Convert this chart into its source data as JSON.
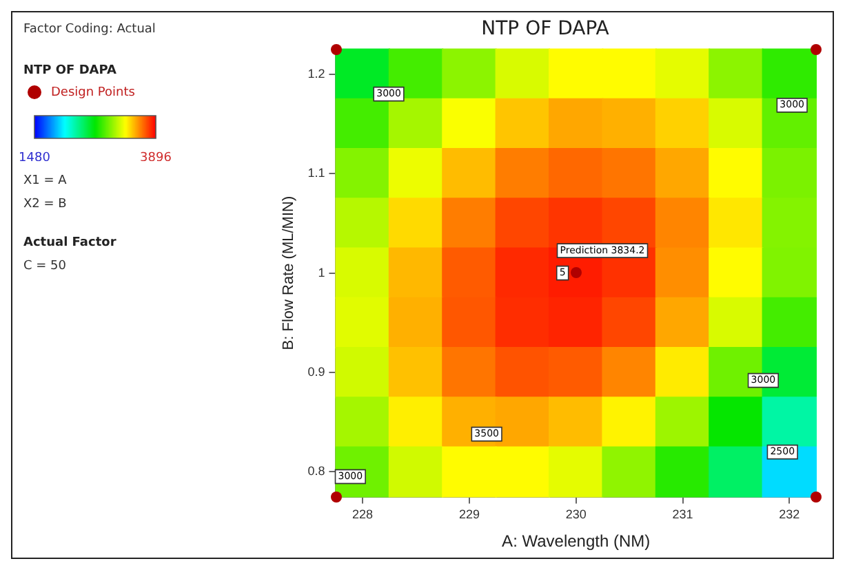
{
  "chart_data": {
    "type": "heatmap",
    "title": "NTP OF DAPA",
    "xlabel": "A: Wavelength (NM)",
    "ylabel": "B: Flow Rate (ML/MIN)",
    "legend_title": "NTP OF DAPA",
    "categories": [
      "228",
      null,
      "229",
      null,
      "230",
      null,
      "231",
      null,
      "232"
    ],
    "y_categories": [
      "1.2",
      null,
      "1.1",
      null,
      "1",
      null,
      "0.9",
      null,
      "0.8"
    ],
    "cells": [
      [
        2600,
        2850,
        3020,
        3200,
        3300,
        3300,
        3230,
        3020,
        2800
      ],
      [
        2850,
        3080,
        3280,
        3430,
        3500,
        3480,
        3400,
        3200,
        2920
      ],
      [
        3000,
        3250,
        3450,
        3600,
        3650,
        3620,
        3500,
        3300,
        2980
      ],
      [
        3120,
        3380,
        3600,
        3730,
        3770,
        3730,
        3580,
        3350,
        3000
      ],
      [
        3200,
        3460,
        3680,
        3800,
        3830,
        3780,
        3560,
        3300,
        2990
      ],
      [
        3220,
        3480,
        3690,
        3790,
        3810,
        3730,
        3500,
        3200,
        2850
      ],
      [
        3180,
        3440,
        3620,
        3700,
        3680,
        3580,
        3340,
        2950,
        2560
      ],
      [
        3080,
        3330,
        3480,
        3500,
        3450,
        3320,
        3060,
        2700,
        2300
      ],
      [
        2950,
        3180,
        3300,
        3300,
        3230,
        3030,
        2780,
        2450,
        2000
      ]
    ],
    "clim": [
      1480,
      3896
    ],
    "cticks": [
      1480,
      3896
    ],
    "annotations": [
      "Factor Coding: Actual",
      "Design Points",
      "X1 = A",
      "X2 = B",
      "Actual Factor",
      "C = 50",
      "3000",
      "3000",
      "3000",
      "3000",
      "2500",
      "3500",
      "5",
      "Prediction 3834.2"
    ]
  }
}
